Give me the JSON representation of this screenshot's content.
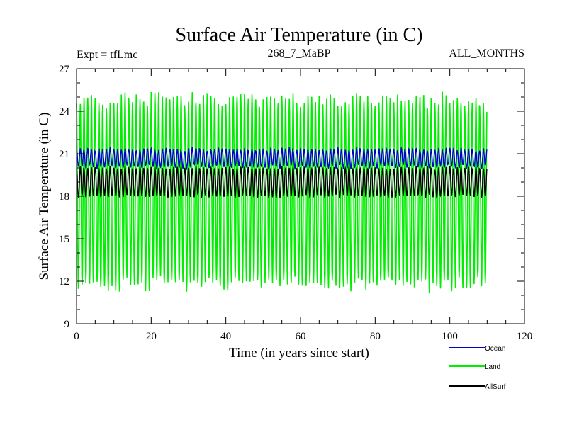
{
  "chart_data": {
    "type": "line",
    "title": "Surface Air Temperature (in C)",
    "subtitle_left": "Expt = tfLmc",
    "subtitle_center": "268_7_MaBP",
    "subtitle_right": "ALL_MONTHS",
    "xlabel": "Time (in years since start)",
    "ylabel": "Surface Air Temperature (in C)",
    "xlim": [
      0,
      120
    ],
    "ylim": [
      9,
      27
    ],
    "x_ticks": [
      0,
      20,
      40,
      60,
      80,
      100,
      120
    ],
    "y_ticks": [
      9,
      12,
      15,
      18,
      21,
      24,
      27
    ],
    "x_end": 110,
    "cycle_years": 1,
    "series": [
      {
        "name": "Ocean",
        "color": "#0000cc",
        "mean": 20.7,
        "amplitude": 0.6,
        "noise": 0.12
      },
      {
        "name": "Land",
        "color": "#00ee00",
        "mean": 18.3,
        "amplitude": 6.5,
        "noise": 0.45
      },
      {
        "name": "AllSurf",
        "color": "#000000",
        "mean": 19.0,
        "amplitude": 1.0,
        "noise": 0.1
      }
    ]
  }
}
